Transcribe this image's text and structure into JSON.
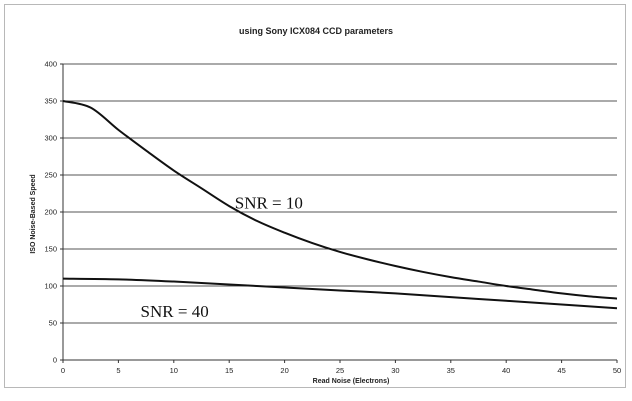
{
  "chart_data": {
    "type": "line",
    "title": "using Sony ICX084 CCD parameters",
    "xlabel": "Read Noise (Electrons)",
    "ylabel": "ISO Noise-Based Speed",
    "xlim": [
      0,
      50
    ],
    "ylim": [
      0,
      400
    ],
    "xticks": [
      "0",
      "5",
      "10",
      "15",
      "20",
      "25",
      "30",
      "35",
      "40",
      "45",
      "50"
    ],
    "yticks": [
      "0",
      "50",
      "100",
      "150",
      "200",
      "250",
      "300",
      "350",
      "400"
    ],
    "grid": "horizontal",
    "series": [
      {
        "x": [
          0,
          2.5,
          5,
          7.5,
          10,
          12.5,
          15,
          17.5,
          20,
          22.5,
          25,
          27.5,
          30,
          32.5,
          35,
          37.5,
          40,
          42.5,
          45,
          47.5,
          50
        ],
        "values": [
          350,
          341,
          311,
          283,
          256,
          232,
          208,
          188,
          172,
          158,
          146,
          136,
          127,
          119,
          112,
          106,
          100,
          95,
          90,
          86,
          83
        ]
      },
      {
        "x": [
          0,
          5,
          10,
          15,
          20,
          25,
          30,
          35,
          40,
          45,
          50
        ],
        "values": [
          110,
          109,
          106,
          102,
          98,
          94,
          90,
          85,
          80,
          75,
          70
        ]
      }
    ],
    "annotations": [
      {
        "text": "SNR = 10",
        "x": 15.5,
        "y": 205
      },
      {
        "text": "SNR = 40",
        "x": 7,
        "y": 58
      }
    ]
  }
}
